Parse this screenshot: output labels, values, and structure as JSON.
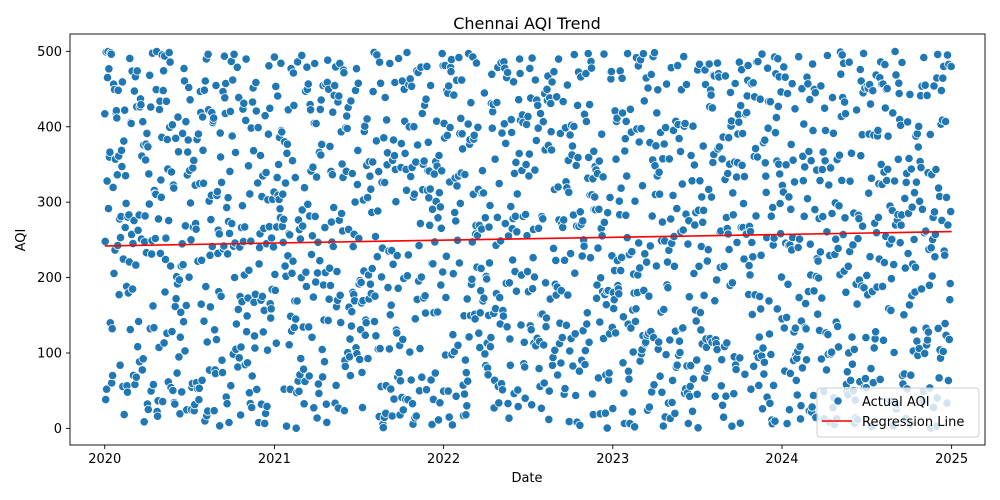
{
  "chart_data": {
    "type": "scatter",
    "title": "Chennai AQI Trend",
    "xlabel": "Date",
    "ylabel": "AQI",
    "x_axis": "date",
    "xlim": [
      "2019-10-18",
      "2025-03-14"
    ],
    "ylim": [
      -22,
      523
    ],
    "x_ticks": [
      "2020",
      "2021",
      "2022",
      "2023",
      "2024",
      "2025"
    ],
    "x_tick_dates": [
      "2020-01-01",
      "2021-01-01",
      "2022-01-01",
      "2023-01-01",
      "2024-01-01",
      "2025-01-01"
    ],
    "y_ticks": [
      0,
      100,
      200,
      300,
      400,
      500
    ],
    "grid": false,
    "legend_position": "lower right",
    "colors": {
      "points": "#1f77b4",
      "points_edge": "#ffffff",
      "regression": "#ff0000"
    },
    "series": [
      {
        "name": "Actual AQI",
        "kind": "scatter",
        "date_range": [
          "2020-01-01",
          "2024-12-31"
        ],
        "frequency": "daily",
        "value_range": [
          0,
          500
        ],
        "distribution": "uniform"
      },
      {
        "name": "Regression Line",
        "kind": "line",
        "x": [
          "2020-01-01",
          "2025-01-01"
        ],
        "y": [
          242,
          261
        ]
      }
    ]
  }
}
